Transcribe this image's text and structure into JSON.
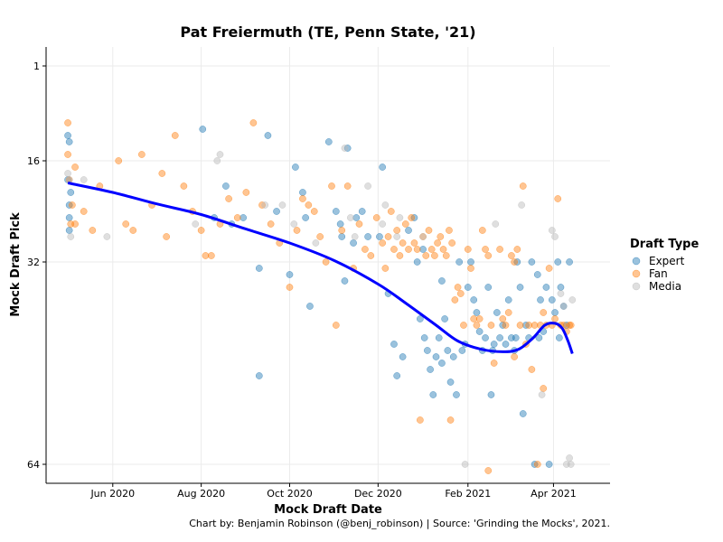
{
  "chart_data": {
    "type": "scatter",
    "title": "Pat Freiermuth (TE, Penn State, '21)",
    "xlabel": "Mock Draft Date",
    "ylabel": "Mock Draft Pick",
    "caption": "Chart by: Benjamin Robinson (@benj_robinson) | Source: 'Grinding the Mocks', 2021.",
    "x_range": [
      "2020-04-16",
      "2021-05-10"
    ],
    "y_range": [
      -2,
      67
    ],
    "y_reversed": true,
    "x_ticks": [
      {
        "date": "2020-06-01",
        "label": "Jun 2020"
      },
      {
        "date": "2020-08-01",
        "label": "Aug 2020"
      },
      {
        "date": "2020-10-01",
        "label": "Oct 2020"
      },
      {
        "date": "2020-12-01",
        "label": "Dec 2020"
      },
      {
        "date": "2021-02-01",
        "label": "Feb 2021"
      },
      {
        "date": "2021-04-01",
        "label": "Apr 2021"
      }
    ],
    "y_ticks": [
      1,
      16,
      32,
      64
    ],
    "grid": true,
    "legend": {
      "title": "Draft Type",
      "position": "right"
    },
    "series": [
      {
        "name": "Expert",
        "color": "#1f77b4",
        "points": [
          [
            "2020-05-01",
            12
          ],
          [
            "2020-05-02",
            13
          ],
          [
            "2020-05-01",
            19
          ],
          [
            "2020-05-02",
            23
          ],
          [
            "2020-05-03",
            21
          ],
          [
            "2020-05-02",
            25
          ],
          [
            "2020-05-02",
            27
          ],
          [
            "2020-08-02",
            11
          ],
          [
            "2020-08-10",
            25
          ],
          [
            "2020-08-18",
            20
          ],
          [
            "2020-08-22",
            26
          ],
          [
            "2020-08-30",
            25
          ],
          [
            "2020-09-10",
            33
          ],
          [
            "2020-09-16",
            12
          ],
          [
            "2020-09-22",
            24
          ],
          [
            "2020-09-10",
            50
          ],
          [
            "2020-10-01",
            34
          ],
          [
            "2020-10-05",
            17
          ],
          [
            "2020-10-10",
            21
          ],
          [
            "2020-10-12",
            25
          ],
          [
            "2020-10-15",
            39
          ],
          [
            "2020-10-28",
            13
          ],
          [
            "2020-11-02",
            24
          ],
          [
            "2020-11-05",
            26
          ],
          [
            "2020-11-06",
            28
          ],
          [
            "2020-11-08",
            35
          ],
          [
            "2020-11-10",
            14
          ],
          [
            "2020-11-14",
            29
          ],
          [
            "2020-11-16",
            25
          ],
          [
            "2020-11-20",
            24
          ],
          [
            "2020-11-24",
            28
          ],
          [
            "2020-12-02",
            28
          ],
          [
            "2020-12-04",
            17
          ],
          [
            "2020-12-08",
            37
          ],
          [
            "2020-12-12",
            45
          ],
          [
            "2020-12-14",
            50
          ],
          [
            "2020-12-18",
            47
          ],
          [
            "2020-12-22",
            27
          ],
          [
            "2020-12-26",
            25
          ],
          [
            "2020-12-28",
            32
          ],
          [
            "2020-12-30",
            41
          ],
          [
            "2021-01-01",
            30
          ],
          [
            "2021-01-02",
            44
          ],
          [
            "2021-01-04",
            46
          ],
          [
            "2021-01-06",
            49
          ],
          [
            "2021-01-08",
            53
          ],
          [
            "2021-01-10",
            47
          ],
          [
            "2021-01-12",
            44
          ],
          [
            "2021-01-14",
            35
          ],
          [
            "2021-01-16",
            41
          ],
          [
            "2021-01-18",
            46
          ],
          [
            "2021-01-20",
            51
          ],
          [
            "2021-01-22",
            47
          ],
          [
            "2021-01-24",
            53
          ],
          [
            "2021-01-26",
            32
          ],
          [
            "2021-01-28",
            46
          ],
          [
            "2021-01-30",
            45
          ],
          [
            "2021-02-01",
            36
          ],
          [
            "2021-02-03",
            32
          ],
          [
            "2021-02-05",
            38
          ],
          [
            "2021-02-07",
            40
          ],
          [
            "2021-02-09",
            43
          ],
          [
            "2021-02-11",
            46
          ],
          [
            "2021-02-13",
            44
          ],
          [
            "2021-02-15",
            36
          ],
          [
            "2021-02-17",
            53
          ],
          [
            "2021-02-19",
            45
          ],
          [
            "2021-02-21",
            40
          ],
          [
            "2021-02-23",
            44
          ],
          [
            "2021-02-25",
            42
          ],
          [
            "2021-02-27",
            45
          ],
          [
            "2021-03-01",
            38
          ],
          [
            "2021-03-03",
            44
          ],
          [
            "2021-03-05",
            46
          ],
          [
            "2021-03-07",
            32
          ],
          [
            "2021-03-09",
            36
          ],
          [
            "2021-03-11",
            56
          ],
          [
            "2021-03-13",
            42
          ],
          [
            "2021-03-15",
            44
          ],
          [
            "2021-03-17",
            32
          ],
          [
            "2021-03-19",
            64
          ],
          [
            "2021-03-21",
            34
          ],
          [
            "2021-03-23",
            38
          ],
          [
            "2021-03-25",
            43
          ],
          [
            "2021-03-27",
            36
          ],
          [
            "2021-03-29",
            64
          ],
          [
            "2021-03-31",
            38
          ],
          [
            "2021-04-02",
            40
          ],
          [
            "2021-04-04",
            32
          ],
          [
            "2021-04-06",
            36
          ],
          [
            "2021-04-08",
            39
          ],
          [
            "2021-04-10",
            42
          ],
          [
            "2021-04-12",
            32
          ],
          [
            "2021-01-14",
            48
          ],
          [
            "2021-02-18",
            46
          ],
          [
            "2021-03-06",
            44
          ],
          [
            "2021-03-22",
            44
          ],
          [
            "2021-04-05",
            44
          ]
        ]
      },
      {
        "name": "Fan",
        "color": "#ff7f0e",
        "points": [
          [
            "2020-05-01",
            10
          ],
          [
            "2020-05-01",
            15
          ],
          [
            "2020-05-02",
            19
          ],
          [
            "2020-05-03",
            26
          ],
          [
            "2020-05-04",
            23
          ],
          [
            "2020-05-06",
            17
          ],
          [
            "2020-05-06",
            26
          ],
          [
            "2020-05-12",
            24
          ],
          [
            "2020-05-18",
            27
          ],
          [
            "2020-05-23",
            20
          ],
          [
            "2020-06-05",
            16
          ],
          [
            "2020-06-10",
            26
          ],
          [
            "2020-06-15",
            27
          ],
          [
            "2020-06-21",
            15
          ],
          [
            "2020-06-28",
            23
          ],
          [
            "2020-07-05",
            18
          ],
          [
            "2020-07-08",
            28
          ],
          [
            "2020-07-14",
            12
          ],
          [
            "2020-07-20",
            20
          ],
          [
            "2020-07-26",
            24
          ],
          [
            "2020-08-01",
            27
          ],
          [
            "2020-08-04",
            31
          ],
          [
            "2020-08-08",
            31
          ],
          [
            "2020-08-14",
            26
          ],
          [
            "2020-08-20",
            22
          ],
          [
            "2020-08-26",
            25
          ],
          [
            "2020-09-01",
            21
          ],
          [
            "2020-09-06",
            10
          ],
          [
            "2020-09-12",
            23
          ],
          [
            "2020-09-18",
            26
          ],
          [
            "2020-09-24",
            29
          ],
          [
            "2020-10-01",
            36
          ],
          [
            "2020-10-06",
            27
          ],
          [
            "2020-10-10",
            22
          ],
          [
            "2020-10-14",
            23
          ],
          [
            "2020-10-18",
            24
          ],
          [
            "2020-10-22",
            28
          ],
          [
            "2020-10-26",
            32
          ],
          [
            "2020-10-30",
            20
          ],
          [
            "2020-11-02",
            42
          ],
          [
            "2020-11-06",
            27
          ],
          [
            "2020-11-10",
            20
          ],
          [
            "2020-11-14",
            33
          ],
          [
            "2020-11-18",
            26
          ],
          [
            "2020-11-22",
            30
          ],
          [
            "2020-11-26",
            31
          ],
          [
            "2020-11-30",
            25
          ],
          [
            "2020-12-04",
            29
          ],
          [
            "2020-12-06",
            33
          ],
          [
            "2020-12-08",
            28
          ],
          [
            "2020-12-10",
            24
          ],
          [
            "2020-12-12",
            30
          ],
          [
            "2020-12-14",
            27
          ],
          [
            "2020-12-16",
            31
          ],
          [
            "2020-12-18",
            29
          ],
          [
            "2020-12-20",
            26
          ],
          [
            "2020-12-22",
            30
          ],
          [
            "2020-12-24",
            25
          ],
          [
            "2020-12-26",
            29
          ],
          [
            "2020-12-28",
            30
          ],
          [
            "2021-01-01",
            28
          ],
          [
            "2021-01-03",
            31
          ],
          [
            "2021-01-05",
            27
          ],
          [
            "2021-01-07",
            30
          ],
          [
            "2021-01-09",
            31
          ],
          [
            "2021-01-11",
            29
          ],
          [
            "2021-01-13",
            28
          ],
          [
            "2021-01-15",
            30
          ],
          [
            "2021-01-17",
            31
          ],
          [
            "2021-01-19",
            27
          ],
          [
            "2021-01-21",
            29
          ],
          [
            "2021-01-23",
            38
          ],
          [
            "2021-01-25",
            36
          ],
          [
            "2021-01-27",
            37
          ],
          [
            "2021-01-29",
            42
          ],
          [
            "2021-02-01",
            30
          ],
          [
            "2021-02-03",
            33
          ],
          [
            "2021-02-05",
            41
          ],
          [
            "2021-02-07",
            42
          ],
          [
            "2021-02-09",
            41
          ],
          [
            "2021-02-11",
            27
          ],
          [
            "2021-02-13",
            30
          ],
          [
            "2021-02-15",
            31
          ],
          [
            "2021-02-17",
            42
          ],
          [
            "2021-02-19",
            48
          ],
          [
            "2021-02-21",
            67
          ],
          [
            "2021-02-23",
            30
          ],
          [
            "2021-02-25",
            41
          ],
          [
            "2021-02-27",
            42
          ],
          [
            "2021-03-01",
            40
          ],
          [
            "2021-03-03",
            31
          ],
          [
            "2021-03-05",
            32
          ],
          [
            "2021-03-07",
            30
          ],
          [
            "2021-03-09",
            42
          ],
          [
            "2021-03-11",
            20
          ],
          [
            "2021-03-13",
            45
          ],
          [
            "2021-03-15",
            42
          ],
          [
            "2021-03-17",
            49
          ],
          [
            "2021-03-19",
            42
          ],
          [
            "2021-03-21",
            64
          ],
          [
            "2021-03-23",
            42
          ],
          [
            "2021-03-25",
            40
          ],
          [
            "2021-03-27",
            42
          ],
          [
            "2021-03-29",
            33
          ],
          [
            "2021-03-31",
            42
          ],
          [
            "2021-04-02",
            41
          ],
          [
            "2021-04-04",
            22
          ],
          [
            "2021-04-06",
            42
          ],
          [
            "2021-04-08",
            42
          ],
          [
            "2021-04-10",
            43
          ],
          [
            "2021-04-12",
            42
          ],
          [
            "2021-04-13",
            42
          ],
          [
            "2020-12-30",
            57
          ],
          [
            "2021-02-15",
            65
          ],
          [
            "2021-03-05",
            47
          ],
          [
            "2021-03-25",
            52
          ],
          [
            "2021-01-20",
            57
          ]
        ]
      },
      {
        "name": "Media",
        "color": "#b8b8b8",
        "points": [
          [
            "2020-05-01",
            18
          ],
          [
            "2020-05-02",
            19
          ],
          [
            "2020-05-03",
            28
          ],
          [
            "2020-05-12",
            19
          ],
          [
            "2020-05-28",
            28
          ],
          [
            "2020-07-28",
            26
          ],
          [
            "2020-08-12",
            16
          ],
          [
            "2020-08-14",
            15
          ],
          [
            "2020-09-14",
            23
          ],
          [
            "2020-09-26",
            23
          ],
          [
            "2020-10-04",
            26
          ],
          [
            "2020-10-19",
            29
          ],
          [
            "2020-11-08",
            14
          ],
          [
            "2020-11-12",
            25
          ],
          [
            "2020-11-15",
            28
          ],
          [
            "2020-11-24",
            20
          ],
          [
            "2020-12-04",
            26
          ],
          [
            "2020-12-06",
            23
          ],
          [
            "2020-12-14",
            28
          ],
          [
            "2020-12-16",
            25
          ],
          [
            "2021-01-01",
            28
          ],
          [
            "2021-01-30",
            64
          ],
          [
            "2021-02-20",
            26
          ],
          [
            "2021-03-10",
            23
          ],
          [
            "2021-03-24",
            53
          ],
          [
            "2021-03-31",
            27
          ],
          [
            "2021-04-02",
            28
          ],
          [
            "2021-04-06",
            37
          ],
          [
            "2021-04-08",
            39
          ],
          [
            "2021-04-10",
            64
          ],
          [
            "2021-04-12",
            63
          ],
          [
            "2021-04-14",
            38
          ],
          [
            "2021-04-13",
            64
          ]
        ]
      }
    ],
    "trend": {
      "color": "#0000ff",
      "points": [
        [
          "2020-05-01",
          19.5
        ],
        [
          "2020-06-01",
          21.0
        ],
        [
          "2020-07-01",
          22.8
        ],
        [
          "2020-08-01",
          24.5
        ],
        [
          "2020-09-01",
          26.8
        ],
        [
          "2020-10-01",
          29.0
        ],
        [
          "2020-11-01",
          31.8
        ],
        [
          "2020-12-01",
          35.5
        ],
        [
          "2020-12-20",
          38.5
        ],
        [
          "2021-01-10",
          42.0
        ],
        [
          "2021-01-25",
          44.5
        ],
        [
          "2021-02-10",
          45.8
        ],
        [
          "2021-02-25",
          46.2
        ],
        [
          "2021-03-08",
          45.8
        ],
        [
          "2021-03-18",
          44.0
        ],
        [
          "2021-03-26",
          42.0
        ],
        [
          "2021-04-02",
          41.7
        ],
        [
          "2021-04-07",
          42.5
        ],
        [
          "2021-04-11",
          44.5
        ],
        [
          "2021-04-14",
          46.5
        ]
      ]
    }
  }
}
